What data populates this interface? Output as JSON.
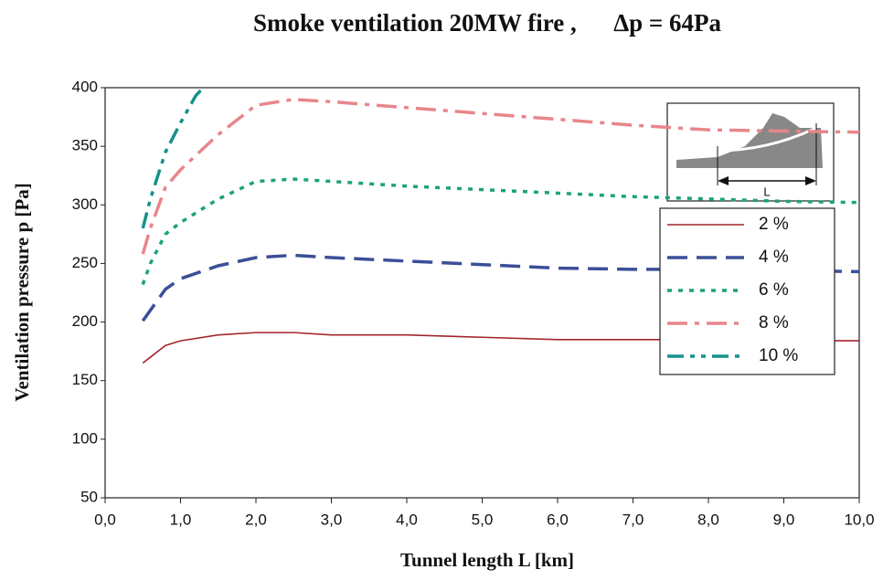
{
  "chart_data": {
    "type": "line",
    "title": "Smoke ventilation 20MW fire ,      Δp = 64Pa",
    "x_label": "Tunnel length L [km]",
    "y_label": "Ventilation pressure p [Pa]",
    "inset_label": "L",
    "xlim": [
      0,
      10
    ],
    "ylim": [
      50,
      400
    ],
    "xticks": [
      {
        "value": 0,
        "label": "0,0"
      },
      {
        "value": 1,
        "label": "1,0"
      },
      {
        "value": 2,
        "label": "2,0"
      },
      {
        "value": 3,
        "label": "3,0"
      },
      {
        "value": 4,
        "label": "4,0"
      },
      {
        "value": 5,
        "label": "5,0"
      },
      {
        "value": 6,
        "label": "6,0"
      },
      {
        "value": 7,
        "label": "7,0"
      },
      {
        "value": 8,
        "label": "8,0"
      },
      {
        "value": 9,
        "label": "9,0"
      },
      {
        "value": 10,
        "label": "10,0"
      }
    ],
    "yticks": [
      50,
      100,
      150,
      200,
      250,
      300,
      350,
      400
    ],
    "grid": false,
    "legend": "right",
    "series": [
      {
        "name": "2 %",
        "color": "#a3262c",
        "dash": "solid",
        "x": [
          0.5,
          0.6,
          0.8,
          1.0,
          1.5,
          2.0,
          2.5,
          3.0,
          4.0,
          5.0,
          6.0,
          7.0,
          8.0,
          9.0,
          10.0
        ],
        "values": [
          165,
          170,
          180,
          184,
          189,
          191,
          191,
          189,
          189,
          187,
          185,
          185,
          185,
          184,
          184
        ]
      },
      {
        "name": "4 %",
        "color": "#3b4f98",
        "dash": "dashed",
        "x": [
          0.5,
          0.6,
          0.8,
          1.0,
          1.5,
          2.0,
          2.5,
          3.0,
          4.0,
          5.0,
          6.0,
          7.0,
          8.0,
          9.0,
          10.0
        ],
        "values": [
          201,
          210,
          228,
          237,
          248,
          255,
          257,
          255,
          252,
          249,
          246,
          245,
          245,
          244,
          243
        ]
      },
      {
        "name": "6 %",
        "color": "#1ba27c",
        "dash": "dotted",
        "x": [
          0.5,
          0.6,
          0.8,
          1.0,
          1.5,
          2.0,
          2.5,
          3.0,
          4.0,
          5.0,
          6.0,
          7.0,
          8.0,
          9.0,
          10.0
        ],
        "values": [
          232,
          250,
          275,
          285,
          305,
          320,
          322,
          320,
          316,
          313,
          310,
          307,
          305,
          303,
          302
        ]
      },
      {
        "name": "8 %",
        "color": "#e8868b",
        "dash": "dashdot",
        "x": [
          0.5,
          0.6,
          0.8,
          1.0,
          1.5,
          2.0,
          2.5,
          3.0,
          4.0,
          5.0,
          6.0,
          7.0,
          8.0,
          9.0,
          10.0
        ],
        "values": [
          258,
          280,
          315,
          330,
          360,
          385,
          390,
          388,
          383,
          378,
          373,
          368,
          364,
          363,
          362
        ]
      },
      {
        "name": "10 %",
        "color": "#17918b",
        "dash": "dashdotdot",
        "x": [
          0.5,
          0.6,
          0.8,
          1.0,
          1.2,
          1.3
        ],
        "values": [
          280,
          305,
          345,
          370,
          393,
          400
        ]
      }
    ]
  }
}
